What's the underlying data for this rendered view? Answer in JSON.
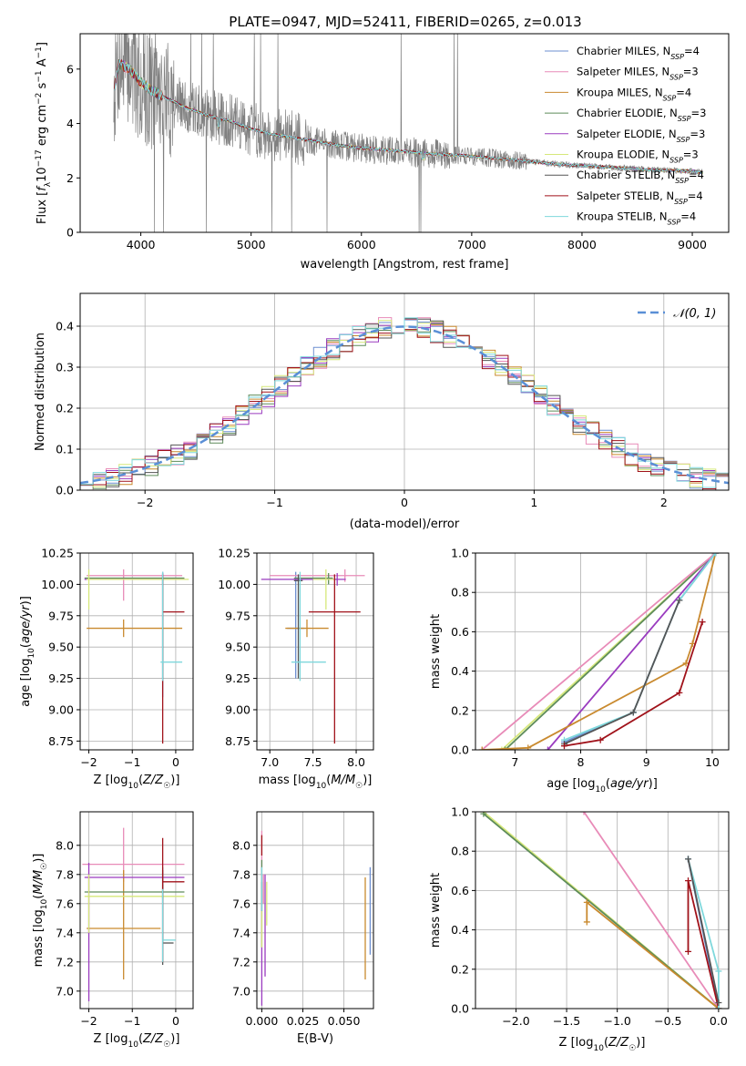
{
  "title": "PLATE=0947, MJD=52411, FIBERID=0265, z=0.013",
  "colors": {
    "Chabrier MILES": "#6d8fd1",
    "Salpeter MILES": "#e88bb8",
    "Kroupa MILES": "#c98a2f",
    "Chabrier ELODIE": "#5e8c5a",
    "Salpeter ELODIE": "#9a3bbf",
    "Kroupa ELODIE": "#d6e87a",
    "Chabrier STELIB": "#555555",
    "Salpeter STELIB": "#a0121a",
    "Kroupa STELIB": "#7fd8dc",
    "data": "#808080",
    "normal": "#5a8fd6"
  },
  "chart_data": [
    {
      "id": "spectrum",
      "type": "line",
      "xlabel": "wavelength [Angstrom, rest frame]",
      "ylabel_parts": [
        "Flux [",
        "f",
        "λ",
        "10",
        "−17",
        " erg cm",
        "−2",
        " s",
        "−1",
        " A",
        "−1",
        "]"
      ],
      "xlim": [
        3450,
        9330
      ],
      "ylim": [
        0,
        7.3
      ],
      "xticks": [
        4000,
        5000,
        6000,
        7000,
        8000,
        9000
      ],
      "yticks": [
        0,
        2,
        4,
        6
      ],
      "legend_placement": "upper right",
      "legend": [
        {
          "model": "Chabrier MILES",
          "nssp": "4"
        },
        {
          "model": "Salpeter MILES",
          "nssp": "3"
        },
        {
          "model": "Kroupa MILES",
          "nssp": "4"
        },
        {
          "model": "Chabrier ELODIE",
          "nssp": "3"
        },
        {
          "model": "Salpeter ELODIE",
          "nssp": "3"
        },
        {
          "model": "Kroupa ELODIE",
          "nssp": "3"
        },
        {
          "model": "Chabrier STELIB",
          "nssp": "4"
        },
        {
          "model": "Salpeter STELIB",
          "nssp": "4"
        },
        {
          "model": "Kroupa STELIB",
          "nssp": "4"
        }
      ],
      "continuum_x": [
        3760,
        3800,
        3900,
        4000,
        4100,
        4200,
        4400,
        4600,
        4800,
        5000,
        5200,
        5500,
        5800,
        6000,
        6300,
        6600,
        7000,
        7400,
        7800,
        8200,
        8600,
        9000,
        9100
      ],
      "continuum_y": [
        5.3,
        6.2,
        6.0,
        5.5,
        5.2,
        5.0,
        4.6,
        4.3,
        4.1,
        3.8,
        3.6,
        3.4,
        3.2,
        3.1,
        3.0,
        2.9,
        2.8,
        2.65,
        2.5,
        2.4,
        2.3,
        2.25,
        2.2
      ]
    },
    {
      "id": "residuals",
      "type": "step",
      "xlabel": "(data-model)/error",
      "ylabel": "Normed distribution",
      "xlim": [
        -2.5,
        2.5
      ],
      "ylim": [
        0,
        0.48
      ],
      "xticks": [
        -2,
        -1,
        0,
        1,
        2
      ],
      "yticks": [
        0.0,
        0.1,
        0.2,
        0.3,
        0.4
      ],
      "grid": true,
      "legend_placement": "upper right",
      "normal_label": "𝒩(0, 1)",
      "bin_width": 0.1
    },
    {
      "id": "age-vs-Z",
      "type": "errorbar",
      "xlabel": "Z [log10(Z/Z☉)]",
      "ylabel": "age [log10(age/yr)]",
      "xlim": [
        -2.2,
        0.4
      ],
      "ylim": [
        8.68,
        10.25
      ],
      "xticks": [
        -2,
        -1,
        0
      ],
      "yticks": [
        8.75,
        9.0,
        9.25,
        9.5,
        9.75,
        10.0,
        10.25
      ],
      "grid": true,
      "points": [
        {
          "model": "Chabrier MILES",
          "x": -0.3,
          "y": 9.65,
          "x_err": [
            0.0,
            0.0
          ],
          "y_err": [
            0.55,
            0.45
          ]
        },
        {
          "model": "Salpeter MILES",
          "x": -1.2,
          "y": 10.07,
          "x_err": [
            0.85,
            1.35
          ],
          "y_err": [
            0.2,
            0.05
          ]
        },
        {
          "model": "Kroupa MILES",
          "x": -1.2,
          "y": 9.65,
          "x_err": [
            0.85,
            1.35
          ],
          "y_err": [
            0.07,
            0.07
          ]
        },
        {
          "model": "Chabrier ELODIE",
          "x": -0.3,
          "y": 10.05,
          "x_err": [
            1.8,
            0.5
          ],
          "y_err": [
            0.05,
            0.04
          ]
        },
        {
          "model": "Salpeter ELODIE",
          "x": -0.3,
          "y": 10.04,
          "x_err": [
            1.8,
            0.5
          ],
          "y_err": [
            0.05,
            0.05
          ]
        },
        {
          "model": "Kroupa ELODIE",
          "x": -2.0,
          "y": 10.04,
          "x_err": [
            0.05,
            2.3
          ],
          "y_err": [
            0.24,
            0.08
          ]
        },
        {
          "model": "Chabrier STELIB",
          "x": -0.3,
          "y": 10.03,
          "x_err": [
            0.0,
            0.0
          ],
          "y_err": [
            0.78,
            0.05
          ]
        },
        {
          "model": "Salpeter STELIB",
          "x": -0.3,
          "y": 9.78,
          "x_err": [
            0.0,
            0.5
          ],
          "y_err": [
            1.05,
            0.3
          ]
        },
        {
          "model": "Kroupa STELIB",
          "x": -0.3,
          "y": 9.38,
          "x_err": [
            0.05,
            0.45
          ],
          "y_err": [
            0.15,
            0.72
          ]
        }
      ]
    },
    {
      "id": "age-vs-mass",
      "type": "errorbar",
      "xlabel": "mass [log10(M/M☉)]",
      "ylabel": "",
      "xlim": [
        6.85,
        8.2
      ],
      "ylim": [
        8.68,
        10.25
      ],
      "xticks": [
        7.0,
        7.5,
        8.0
      ],
      "yticks": [
        8.75,
        9.0,
        9.25,
        9.5,
        9.75,
        10.0,
        10.25
      ],
      "grid": true,
      "points": [
        {
          "model": "Chabrier MILES",
          "x": 7.3,
          "y": 9.65,
          "x_err": [
            0.1,
            0.1
          ],
          "y_err": [
            0.4,
            0.45
          ]
        },
        {
          "model": "Salpeter MILES",
          "x": 7.87,
          "y": 10.07,
          "x_err": [
            0.87,
            0.23
          ],
          "y_err": [
            0.05,
            0.05
          ]
        },
        {
          "model": "Kroupa MILES",
          "x": 7.43,
          "y": 9.65,
          "x_err": [
            0.25,
            0.25
          ],
          "y_err": [
            0.07,
            0.07
          ]
        },
        {
          "model": "Chabrier ELODIE",
          "x": 7.68,
          "y": 10.05,
          "x_err": [
            0.4,
            0.05
          ],
          "y_err": [
            0.05,
            0.04
          ]
        },
        {
          "model": "Salpeter ELODIE",
          "x": 7.78,
          "y": 10.04,
          "x_err": [
            0.88,
            0.1
          ],
          "y_err": [
            0.05,
            0.05
          ]
        },
        {
          "model": "Kroupa ELODIE",
          "x": 7.65,
          "y": 10.04,
          "x_err": [
            0.15,
            0.1
          ],
          "y_err": [
            0.24,
            0.08
          ]
        },
        {
          "model": "Chabrier STELIB",
          "x": 7.33,
          "y": 10.03,
          "x_err": [
            0.05,
            0.05
          ],
          "y_err": [
            0.78,
            0.05
          ]
        },
        {
          "model": "Salpeter STELIB",
          "x": 7.75,
          "y": 9.78,
          "x_err": [
            0.3,
            0.3
          ],
          "y_err": [
            1.05,
            0.3
          ]
        },
        {
          "model": "Kroupa STELIB",
          "x": 7.35,
          "y": 9.38,
          "x_err": [
            0.1,
            0.3
          ],
          "y_err": [
            0.15,
            0.72
          ]
        }
      ]
    },
    {
      "id": "massweight-vs-age",
      "type": "line",
      "xlabel": "age [log10(age/yr)]",
      "ylabel": "mass weight",
      "xlim": [
        6.4,
        10.25
      ],
      "ylim": [
        0,
        1
      ],
      "xticks": [
        7,
        8,
        9,
        10
      ],
      "yticks": [
        0.0,
        0.2,
        0.4,
        0.6,
        0.8,
        1.0
      ],
      "grid": true,
      "series": [
        {
          "model": "Kroupa ELODIE",
          "x": [
            6.8,
            10.05
          ],
          "y": [
            0.0,
            1.0
          ]
        },
        {
          "model": "Chabrier ELODIE",
          "x": [
            6.85,
            10.05
          ],
          "y": [
            0.0,
            1.0
          ]
        },
        {
          "model": "Salpeter ELODIE",
          "x": [
            7.5,
            10.05
          ],
          "y": [
            0.0,
            1.0
          ]
        },
        {
          "model": "Salpeter MILES",
          "x": [
            6.5,
            10.05
          ],
          "y": [
            0.0,
            1.0
          ]
        },
        {
          "model": "Kroupa MILES",
          "x": [
            6.5,
            7.2,
            9.6,
            9.7,
            10.05
          ],
          "y": [
            0.0,
            0.01,
            0.44,
            0.54,
            1.0
          ]
        },
        {
          "model": "Chabrier MILES",
          "x": [
            7.75,
            8.8,
            9.5,
            10.05
          ],
          "y": [
            0.04,
            0.19,
            0.76,
            1.0
          ]
        },
        {
          "model": "Kroupa STELIB",
          "x": [
            7.75,
            8.8,
            9.5,
            10.05
          ],
          "y": [
            0.05,
            0.19,
            0.76,
            1.0
          ]
        },
        {
          "model": "Chabrier STELIB",
          "x": [
            7.75,
            8.8,
            9.5
          ],
          "y": [
            0.03,
            0.19,
            0.76
          ]
        },
        {
          "model": "Salpeter STELIB",
          "x": [
            7.75,
            8.3,
            9.5,
            9.85
          ],
          "y": [
            0.02,
            0.05,
            0.29,
            0.65
          ]
        }
      ]
    },
    {
      "id": "mass-vs-Z",
      "type": "errorbar",
      "xlabel": "Z [log10(Z/Z☉)]",
      "ylabel": "mass [log10(M/M☉)]",
      "xlim": [
        -2.2,
        0.4
      ],
      "ylim": [
        6.88,
        8.23
      ],
      "xticks": [
        -2,
        -1,
        0
      ],
      "yticks": [
        7.0,
        7.2,
        7.4,
        7.6,
        7.8,
        8.0
      ],
      "grid": true,
      "points": [
        {
          "model": "Chabrier MILES",
          "x": -0.3,
          "y": 7.8,
          "x_err": [
            0.0,
            0.0
          ],
          "y_err": [
            0.45,
            0.05
          ]
        },
        {
          "model": "Salpeter MILES",
          "x": -1.2,
          "y": 7.87,
          "x_err": [
            0.95,
            1.4
          ],
          "y_err": [
            0.12,
            0.25
          ]
        },
        {
          "model": "Kroupa MILES",
          "x": -1.2,
          "y": 7.43,
          "x_err": [
            0.85,
            0.85
          ],
          "y_err": [
            0.35,
            0.4
          ]
        },
        {
          "model": "Chabrier ELODIE",
          "x": -0.3,
          "y": 7.68,
          "x_err": [
            1.8,
            0.5
          ],
          "y_err": [
            0.05,
            0.05
          ]
        },
        {
          "model": "Salpeter ELODIE",
          "x": -2.0,
          "y": 7.78,
          "x_err": [
            0.1,
            2.2
          ],
          "y_err": [
            0.85,
            0.1
          ]
        },
        {
          "model": "Kroupa ELODIE",
          "x": -2.0,
          "y": 7.65,
          "x_err": [
            0.1,
            2.2
          ],
          "y_err": [
            0.25,
            0.15
          ]
        },
        {
          "model": "Chabrier STELIB",
          "x": -0.3,
          "y": 7.33,
          "x_err": [
            0.0,
            0.25
          ],
          "y_err": [
            0.15,
            0.5
          ]
        },
        {
          "model": "Salpeter STELIB",
          "x": -0.3,
          "y": 7.75,
          "x_err": [
            0.0,
            0.5
          ],
          "y_err": [
            0.55,
            0.3
          ]
        },
        {
          "model": "Kroupa STELIB",
          "x": -0.3,
          "y": 7.35,
          "x_err": [
            0.0,
            0.3
          ],
          "y_err": [
            0.15,
            0.35
          ]
        }
      ]
    },
    {
      "id": "mass-vs-EBV",
      "type": "errorbar",
      "xlabel": "E(B-V)",
      "ylabel": "",
      "xlim": [
        -0.003,
        0.068
      ],
      "ylim": [
        6.88,
        8.23
      ],
      "xticks": [
        0.0,
        0.025,
        0.05
      ],
      "xtick_labels": [
        "0.000",
        "0.025",
        "0.050"
      ],
      "yticks": [
        7.0,
        7.2,
        7.4,
        7.6,
        7.8,
        8.0
      ],
      "grid": true,
      "points": [
        {
          "model": "Chabrier MILES",
          "x": 0.066,
          "y": 7.55,
          "y_err": [
            0.3,
            0.3
          ]
        },
        {
          "model": "Salpeter MILES",
          "x": 0.0,
          "y": 7.9,
          "y_err": [
            0.2,
            0.2
          ]
        },
        {
          "model": "Kroupa MILES",
          "x": 0.063,
          "y": 7.43,
          "y_err": [
            0.35,
            0.35
          ]
        },
        {
          "model": "Chabrier ELODIE",
          "x": 0.0,
          "y": 7.6,
          "y_err": [
            0.3,
            0.3
          ]
        },
        {
          "model": "Salpeter ELODIE",
          "x": 0.0,
          "y": 7.3,
          "y_err": [
            0.4,
            0.4
          ]
        },
        {
          "model": "Kroupa ELODIE",
          "x": 0.0,
          "y": 7.5,
          "y_err": [
            0.2,
            0.2
          ]
        },
        {
          "model": "Chabrier STELIB",
          "x": 0.0,
          "y": 7.65,
          "y_err": [
            0.1,
            0.1
          ]
        },
        {
          "model": "Salpeter STELIB",
          "x": 0.0,
          "y": 8.0,
          "y_err": [
            0.07,
            0.07
          ]
        },
        {
          "model": "Kroupa STELIB",
          "x": 0.0,
          "y": 7.7,
          "y_err": [
            0.15,
            0.15
          ]
        },
        {
          "model": "Salpeter MILES",
          "x": 0.001,
          "y": 7.7,
          "y_err": [
            0.1,
            0.1
          ]
        },
        {
          "model": "Kroupa ELODIE",
          "x": 0.003,
          "y": 7.6,
          "y_err": [
            0.15,
            0.15
          ]
        },
        {
          "model": "Salpeter ELODIE",
          "x": 0.002,
          "y": 7.45,
          "y_err": [
            0.35,
            0.35
          ]
        }
      ]
    },
    {
      "id": "massweight-vs-Z",
      "type": "line",
      "xlabel": "Z [log10(Z/Z☉)]",
      "ylabel": "mass weight",
      "xlim": [
        -2.4,
        0.1
      ],
      "ylim": [
        0,
        1
      ],
      "xticks": [
        -2.0,
        -1.5,
        -1.0,
        -0.5,
        0.0
      ],
      "yticks": [
        0.0,
        0.2,
        0.4,
        0.6,
        0.8,
        1.0
      ],
      "grid": true,
      "series": [
        {
          "model": "Salpeter MILES",
          "x": [
            -1.33,
            0.0
          ],
          "y": [
            1.0,
            0.0
          ]
        },
        {
          "model": "Kroupa ELODIE",
          "x": [
            -2.32,
            0.0
          ],
          "y": [
            1.0,
            0.0
          ]
        },
        {
          "model": "Chabrier ELODIE",
          "x": [
            -2.32,
            0.0
          ],
          "y": [
            0.99,
            0.0
          ]
        },
        {
          "model": "Kroupa MILES",
          "x": [
            -1.3,
            -1.3,
            0.0
          ],
          "y": [
            0.44,
            0.54,
            0.0
          ]
        },
        {
          "model": "Chabrier MILES",
          "x": [
            -0.3,
            0.0
          ],
          "y": [
            0.76,
            0.0
          ]
        },
        {
          "model": "Salpeter STELIB",
          "x": [
            -0.3,
            -0.3,
            0.0
          ],
          "y": [
            0.29,
            0.65,
            0.0
          ]
        },
        {
          "model": "Kroupa STELIB",
          "x": [
            -0.3,
            0.0,
            0.0
          ],
          "y": [
            0.76,
            0.19,
            0.0
          ]
        },
        {
          "model": "Chabrier STELIB",
          "x": [
            -0.3,
            0.0
          ],
          "y": [
            0.76,
            0.03
          ]
        }
      ]
    }
  ]
}
